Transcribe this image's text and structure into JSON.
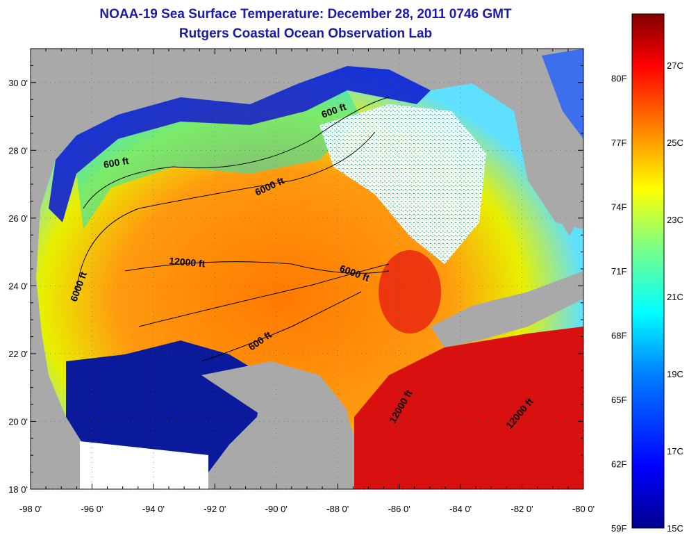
{
  "title": "NOAA-19 Sea Surface Temperature:  December 28, 2011 0746 GMT",
  "subtitle": "Rutgers Coastal Ocean Observation Lab",
  "map": {
    "lon_ticks": [
      "-98 0'",
      "-96 0'",
      "-94 0'",
      "-92 0'",
      "-90 0'",
      "-88 0'",
      "-86 0'",
      "-84 0'",
      "-82 0'",
      "-80 0'"
    ],
    "lat_ticks": [
      "30 0'",
      "28 0'",
      "26 0'",
      "24 0'",
      "22 0'",
      "20 0'",
      "18 0'"
    ],
    "lon_range": [
      -98,
      -80
    ],
    "lat_range": [
      18,
      31
    ],
    "land_color": "#a9a9a9",
    "contour_labels": [
      "600 ft",
      "600 ft",
      "6000 ft",
      "12000 ft",
      "6000 ft",
      "6000 ft",
      "600 ft",
      "12000 ft",
      "12000 ft"
    ]
  },
  "colorbar": {
    "fahrenheit_labels": [
      "80F",
      "77F",
      "74F",
      "71F",
      "68F",
      "65F",
      "62F",
      "59F"
    ],
    "celsius_labels": [
      "27C",
      "25C",
      "23C",
      "21C",
      "19C",
      "17C",
      "15C"
    ],
    "colors": [
      "#7f0000",
      "#ff0000",
      "#ff8000",
      "#ffff00",
      "#80ff80",
      "#00ffff",
      "#0080ff",
      "#0000ff",
      "#00008f"
    ]
  }
}
